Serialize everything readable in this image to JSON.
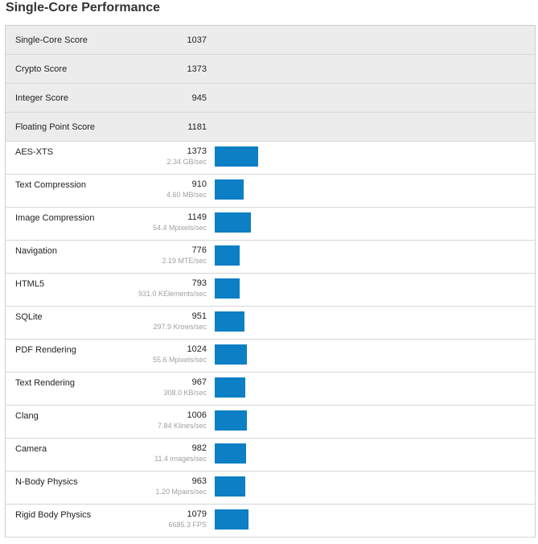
{
  "page_title": "Single-Core Performance",
  "summary": [
    {
      "label": "Single-Core Score",
      "value": "1037"
    },
    {
      "label": "Crypto Score",
      "value": "1373"
    },
    {
      "label": "Integer Score",
      "value": "945"
    },
    {
      "label": "Floating Point Score",
      "value": "1181"
    }
  ],
  "bar_color": "#0d7fc4",
  "bar_scale_max_score": 1373,
  "benchmarks": [
    {
      "name": "AES-XTS",
      "score": 1373,
      "rate": "2.34 GB/sec"
    },
    {
      "name": "Text Compression",
      "score": 910,
      "rate": "4.60 MB/sec"
    },
    {
      "name": "Image Compression",
      "score": 1149,
      "rate": "54.4 Mpixels/sec"
    },
    {
      "name": "Navigation",
      "score": 776,
      "rate": "2.19 MTE/sec"
    },
    {
      "name": "HTML5",
      "score": 793,
      "rate": "931.0 KElements/sec"
    },
    {
      "name": "SQLite",
      "score": 951,
      "rate": "297.9 Krows/sec"
    },
    {
      "name": "PDF Rendering",
      "score": 1024,
      "rate": "55.6 Mpixels/sec"
    },
    {
      "name": "Text Rendering",
      "score": 967,
      "rate": "308.0 KB/sec"
    },
    {
      "name": "Clang",
      "score": 1006,
      "rate": "7.84 Klines/sec"
    },
    {
      "name": "Camera",
      "score": 982,
      "rate": "11.4 images/sec"
    },
    {
      "name": "N-Body Physics",
      "score": 963,
      "rate": "1.20 Mpairs/sec"
    },
    {
      "name": "Rigid Body Physics",
      "score": 1079,
      "rate": "6685.3 FPS"
    }
  ]
}
